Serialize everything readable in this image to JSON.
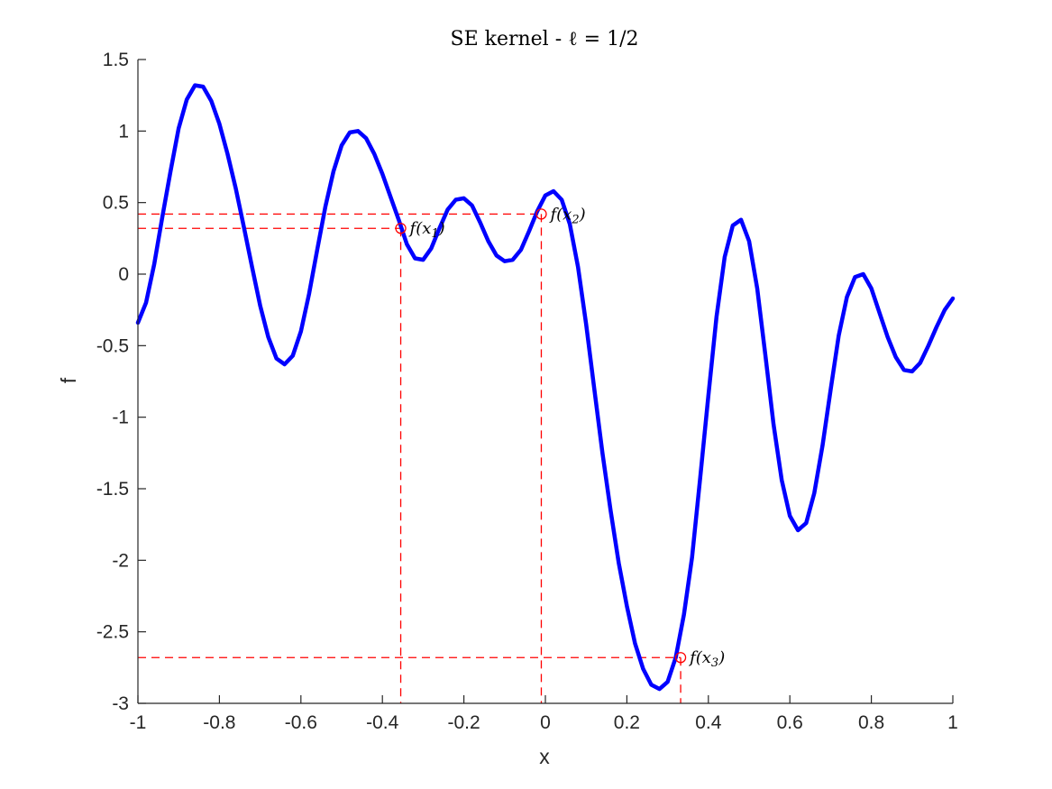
{
  "chart_data": {
    "type": "line",
    "title": "SE kernel - ℓ = 1/2",
    "xlabel": "x",
    "ylabel": "f",
    "xlim": [
      -1,
      1
    ],
    "ylim": [
      -3,
      1.5
    ],
    "xticks": [
      -1,
      -0.8,
      -0.6,
      -0.4,
      -0.2,
      0,
      0.2,
      0.4,
      0.6,
      0.8,
      1
    ],
    "xtick_labels": [
      "-1",
      "-0.8",
      "-0.6",
      "-0.4",
      "-0.2",
      "0",
      "0.2",
      "0.4",
      "0.6",
      "0.8",
      "1"
    ],
    "yticks": [
      -3,
      -2.5,
      -2,
      -1.5,
      -1,
      -0.5,
      0,
      0.5,
      1,
      1.5
    ],
    "ytick_labels": [
      "-3",
      "-2.5",
      "-2",
      "-1.5",
      "-1",
      "-0.5",
      "0",
      "0.5",
      "1",
      "1.5"
    ],
    "grid": false,
    "colors": {
      "curve": "#0000ff",
      "marker": "#ff0000",
      "axis": "#262626"
    },
    "series": [
      {
        "x": [
          -1,
          -0.98,
          -0.96,
          -0.94,
          -0.92,
          -0.9,
          -0.88,
          -0.86,
          -0.84,
          -0.82,
          -0.8,
          -0.78,
          -0.76,
          -0.74,
          -0.72,
          -0.7,
          -0.68,
          -0.66,
          -0.64,
          -0.62,
          -0.6,
          -0.58,
          -0.56,
          -0.54,
          -0.52,
          -0.5,
          -0.48,
          -0.46,
          -0.44,
          -0.42,
          -0.4,
          -0.38,
          -0.36,
          -0.34,
          -0.32,
          -0.3,
          -0.28,
          -0.26,
          -0.24,
          -0.22,
          -0.2,
          -0.18,
          -0.16,
          -0.14,
          -0.12,
          -0.1,
          -0.08,
          -0.06,
          -0.04,
          -0.02,
          0,
          0.02,
          0.04,
          0.06,
          0.08,
          0.1,
          0.12,
          0.14,
          0.16,
          0.18,
          0.2,
          0.22,
          0.24,
          0.26,
          0.28,
          0.3,
          0.32,
          0.34,
          0.36,
          0.38,
          0.4,
          0.42,
          0.44,
          0.46,
          0.48,
          0.5,
          0.52,
          0.54,
          0.56,
          0.58,
          0.6,
          0.62,
          0.64,
          0.66,
          0.68,
          0.7,
          0.72,
          0.74,
          0.76,
          0.78,
          0.8,
          0.82,
          0.84,
          0.86,
          0.88,
          0.9,
          0.92,
          0.94,
          0.96,
          0.98,
          1
        ],
        "y": [
          -0.34,
          -0.2,
          0.07,
          0.4,
          0.72,
          1.02,
          1.22,
          1.32,
          1.31,
          1.21,
          1.05,
          0.84,
          0.6,
          0.33,
          0.05,
          -0.22,
          -0.44,
          -0.59,
          -0.63,
          -0.57,
          -0.4,
          -0.14,
          0.17,
          0.47,
          0.72,
          0.9,
          0.99,
          1.0,
          0.95,
          0.84,
          0.7,
          0.54,
          0.38,
          0.21,
          0.11,
          0.1,
          0.18,
          0.32,
          0.45,
          0.52,
          0.53,
          0.48,
          0.36,
          0.23,
          0.13,
          0.09,
          0.1,
          0.17,
          0.3,
          0.44,
          0.55,
          0.58,
          0.52,
          0.35,
          0.05,
          -0.35,
          -0.8,
          -1.25,
          -1.65,
          -2.02,
          -2.32,
          -2.58,
          -2.76,
          -2.87,
          -2.9,
          -2.85,
          -2.68,
          -2.38,
          -1.98,
          -1.42,
          -0.85,
          -0.3,
          0.12,
          0.34,
          0.38,
          0.23,
          -0.1,
          -0.57,
          -1.05,
          -1.44,
          -1.69,
          -1.79,
          -1.74,
          -1.53,
          -1.2,
          -0.81,
          -0.43,
          -0.16,
          -0.02,
          0.0,
          -0.1,
          -0.27,
          -0.44,
          -0.58,
          -0.67,
          -0.68,
          -0.62,
          -0.5,
          -0.37,
          -0.25,
          -0.17
        ]
      }
    ],
    "annotations": [
      {
        "label": "f(x1)",
        "sub": "1",
        "x": -0.355,
        "y": 0.32
      },
      {
        "label": "f(x2)",
        "sub": "2",
        "x": -0.01,
        "y": 0.42
      },
      {
        "label": "f(x3)",
        "sub": "3",
        "x": 0.332,
        "y": -2.68
      }
    ]
  }
}
